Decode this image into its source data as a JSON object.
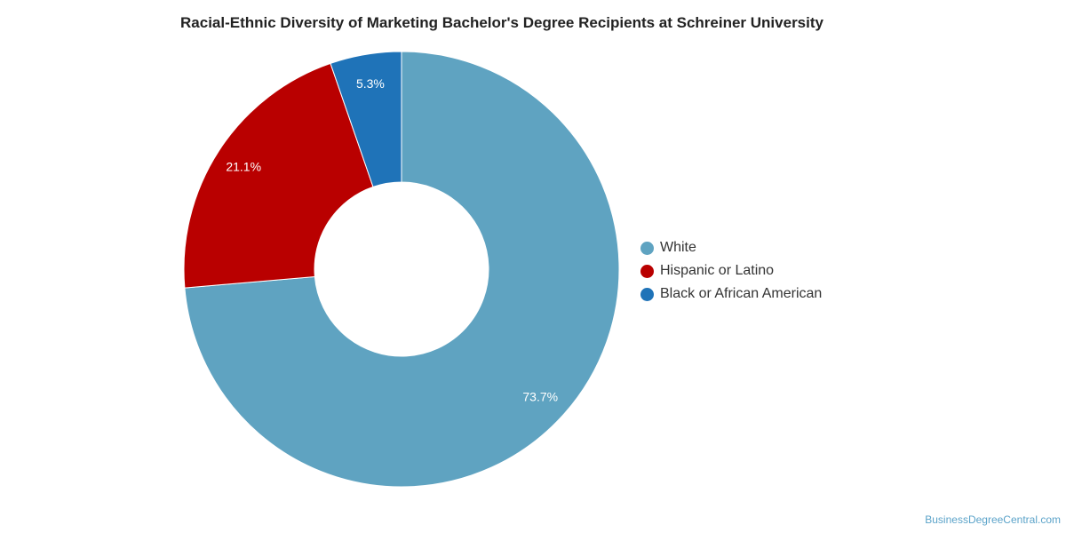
{
  "title": "Racial-Ethnic Diversity of Marketing Bachelor's Degree Recipients at Schreiner University",
  "watermark": "BusinessDegreeCentral.com",
  "chart_data": {
    "type": "pie",
    "donut": true,
    "title": "Racial-Ethnic Diversity of Marketing Bachelor's Degree Recipients at Schreiner University",
    "legend_position": "right",
    "series": [
      {
        "name": "White",
        "value": 73.7,
        "label": "73.7%",
        "color": "#5fa3c1"
      },
      {
        "name": "Hispanic or Latino",
        "value": 21.1,
        "label": "21.1%",
        "color": "#b90000"
      },
      {
        "name": "Black or African American",
        "value": 5.3,
        "label": "5.3%",
        "color": "#1f73b8"
      }
    ]
  }
}
